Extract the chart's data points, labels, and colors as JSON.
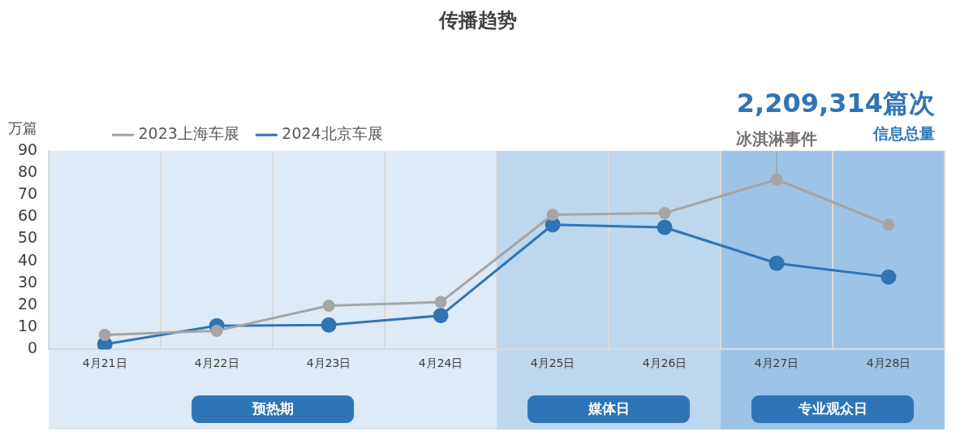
{
  "chart_data": {
    "type": "line",
    "title": "传播趋势",
    "ylabel": "万篇",
    "categories": [
      "4月21日",
      "4月22日",
      "4月23日",
      "4月24日",
      "4月25日",
      "4月26日",
      "4月27日",
      "4月28日"
    ],
    "series": [
      {
        "name": "2024北京车展",
        "color": "#2e75b6",
        "values": [
          2.3,
          10.7,
          11,
          15.3,
          56.5,
          55.3,
          39,
          32.8
        ]
      },
      {
        "name": "2023上海车展",
        "color": "#a5a5a5",
        "values": [
          6.5,
          8.4,
          19.8,
          21.4,
          61,
          61.8,
          77,
          56.5
        ]
      }
    ],
    "ylim": [
      0,
      90
    ],
    "yticks": [
      0,
      10,
      20,
      30,
      40,
      50,
      60,
      70,
      80,
      90
    ],
    "bands": [
      {
        "axis": "x",
        "from": "4月21日",
        "to": "4月24日",
        "label": "预热期",
        "color": "#deeaf6"
      },
      {
        "axis": "x",
        "from": "4月25日",
        "to": "4月26日",
        "label": "媒体日",
        "color": "#bdd7ee"
      },
      {
        "axis": "x",
        "from": "4月27日",
        "to": "4月28日",
        "label": "专业观众日",
        "color": "#9dc3e6"
      }
    ],
    "annotations": [
      {
        "text": "冰淇淋事件",
        "x": "4月27日",
        "y": 77
      },
      "2,209,314篇次",
      "信息总量"
    ],
    "grid": "x",
    "legend": "top left",
    "marker": "circle",
    "line_style": "solid"
  }
}
